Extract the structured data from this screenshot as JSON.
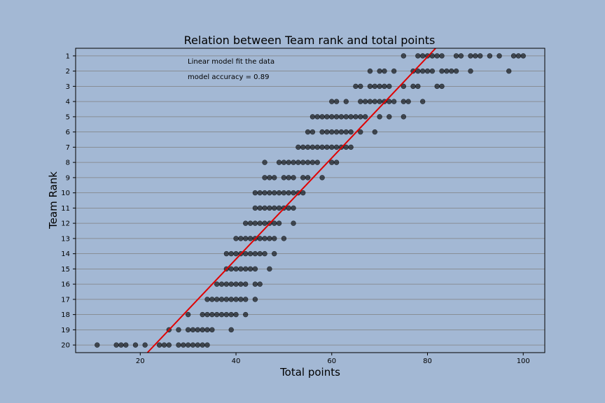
{
  "chart_data": {
    "type": "scatter",
    "title": "Relation between Team rank and total points",
    "xlabel": "Total points",
    "ylabel": "Team Rank",
    "xlim": [
      6.5,
      104.5
    ],
    "ylim": [
      20.5,
      0.5
    ],
    "y_inverted": true,
    "grid": "horizontal",
    "x_ticks": [
      20,
      40,
      60,
      80,
      100
    ],
    "y_ticks": [
      1,
      2,
      3,
      4,
      5,
      6,
      7,
      8,
      9,
      10,
      11,
      12,
      13,
      14,
      15,
      16,
      17,
      18,
      19,
      20
    ],
    "annotations": [
      "Linear model fit the data",
      "model accuracy = 0.89"
    ],
    "fit_line": {
      "x": [
        21.5,
        81.7
      ],
      "y": [
        20.5,
        0.5
      ],
      "color": "#e00000"
    },
    "colors": {
      "background": "#a3b8d4",
      "marker": "#000000",
      "fit": "#e00000",
      "grid": "#808080"
    },
    "points": [
      {
        "rank": 1,
        "x": [
          75,
          78,
          79,
          80,
          81,
          82,
          83,
          86,
          87,
          89,
          90,
          91,
          93,
          95,
          98,
          99,
          100
        ]
      },
      {
        "rank": 2,
        "x": [
          68,
          70,
          71,
          73,
          77,
          78,
          79,
          80,
          81,
          83,
          84,
          85,
          86,
          89,
          97
        ]
      },
      {
        "rank": 3,
        "x": [
          65,
          66,
          68,
          69,
          70,
          71,
          72,
          75,
          77,
          78,
          82,
          83
        ]
      },
      {
        "rank": 4,
        "x": [
          60,
          61,
          63,
          66,
          67,
          68,
          69,
          70,
          71,
          72,
          73,
          75,
          76,
          79
        ]
      },
      {
        "rank": 5,
        "x": [
          56,
          57,
          58,
          59,
          60,
          61,
          62,
          63,
          64,
          65,
          66,
          67,
          70,
          72,
          75
        ]
      },
      {
        "rank": 6,
        "x": [
          55,
          56,
          58,
          59,
          60,
          61,
          62,
          63,
          64,
          66,
          69
        ]
      },
      {
        "rank": 7,
        "x": [
          53,
          54,
          55,
          56,
          57,
          58,
          59,
          60,
          61,
          62,
          63,
          64
        ]
      },
      {
        "rank": 8,
        "x": [
          46,
          49,
          50,
          51,
          52,
          53,
          54,
          55,
          56,
          57,
          60,
          61
        ]
      },
      {
        "rank": 9,
        "x": [
          46,
          47,
          48,
          50,
          51,
          52,
          54,
          55,
          58
        ]
      },
      {
        "rank": 10,
        "x": [
          44,
          45,
          46,
          47,
          48,
          49,
          50,
          51,
          52,
          53,
          54
        ]
      },
      {
        "rank": 11,
        "x": [
          44,
          45,
          46,
          47,
          48,
          49,
          50,
          51,
          52
        ]
      },
      {
        "rank": 12,
        "x": [
          42,
          43,
          44,
          45,
          46,
          47,
          48,
          49,
          52
        ]
      },
      {
        "rank": 13,
        "x": [
          40,
          41,
          42,
          43,
          44,
          45,
          46,
          47,
          48,
          50
        ]
      },
      {
        "rank": 14,
        "x": [
          38,
          39,
          40,
          41,
          42,
          43,
          44,
          45,
          46,
          48
        ]
      },
      {
        "rank": 15,
        "x": [
          38,
          39,
          40,
          41,
          42,
          43,
          44,
          47
        ]
      },
      {
        "rank": 16,
        "x": [
          36,
          37,
          38,
          39,
          40,
          41,
          42,
          44,
          45
        ]
      },
      {
        "rank": 17,
        "x": [
          34,
          35,
          36,
          37,
          38,
          39,
          40,
          41,
          42,
          44
        ]
      },
      {
        "rank": 18,
        "x": [
          30,
          33,
          34,
          35,
          36,
          37,
          38,
          39,
          40,
          42
        ]
      },
      {
        "rank": 19,
        "x": [
          26,
          28,
          30,
          31,
          32,
          33,
          34,
          35,
          39
        ]
      },
      {
        "rank": 20,
        "x": [
          11,
          15,
          16,
          17,
          19,
          21,
          24,
          25,
          26,
          28,
          29,
          30,
          31,
          32,
          33,
          34
        ]
      }
    ]
  }
}
